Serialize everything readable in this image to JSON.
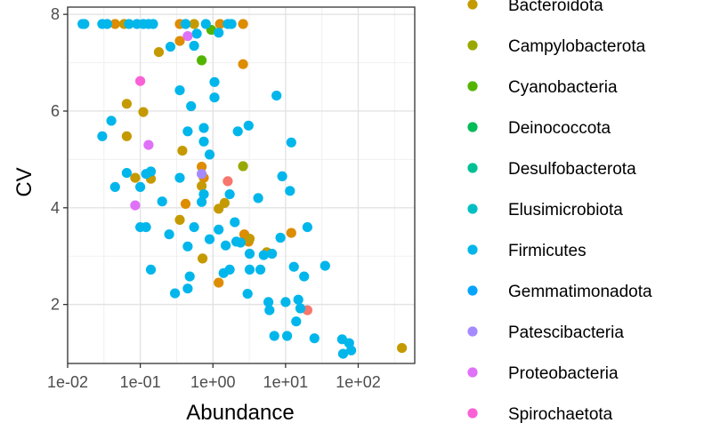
{
  "chart_data": {
    "type": "scatter",
    "xlabel": "Abundance",
    "ylabel": "CV",
    "x_scale": "log10",
    "xlim": [
      0.01,
      600
    ],
    "ylim": [
      0.78,
      8.15
    ],
    "x_ticks": [
      {
        "value": 0.01,
        "label": "1e-02"
      },
      {
        "value": 0.1,
        "label": "1e-01"
      },
      {
        "value": 1,
        "label": "1e+00"
      },
      {
        "value": 10,
        "label": "1e+01"
      },
      {
        "value": 100,
        "label": "1e+02"
      }
    ],
    "y_ticks": [
      {
        "value": 2,
        "label": "2"
      },
      {
        "value": 4,
        "label": "4"
      },
      {
        "value": 6,
        "label": "6"
      },
      {
        "value": 8,
        "label": "8"
      }
    ],
    "grid": true,
    "legend_position": "right",
    "legend": [
      {
        "name": "Bacteroidota",
        "color": "#C49A00"
      },
      {
        "name": "Campylobacterota",
        "color": "#99A800"
      },
      {
        "name": "Cyanobacteria",
        "color": "#53B400"
      },
      {
        "name": "Deinococcota",
        "color": "#00BC56"
      },
      {
        "name": "Desulfobacterota",
        "color": "#00C094"
      },
      {
        "name": "Elusimicrobiota",
        "color": "#00BFC4"
      },
      {
        "name": "Firmicutes",
        "color": "#00B6EB"
      },
      {
        "name": "Gemmatimonadota",
        "color": "#06A4FF"
      },
      {
        "name": "Patescibacteria",
        "color": "#A58AFF"
      },
      {
        "name": "Proteobacteria",
        "color": "#DF70F8"
      },
      {
        "name": "Spirochaetota",
        "color": "#FB61D7"
      }
    ],
    "series": [
      {
        "color": "#F8766D",
        "points": [
          [
            1.6,
            4.55
          ],
          [
            20,
            1.88
          ]
        ]
      },
      {
        "color": "#DE8C00",
        "points": [
          [
            0.045,
            7.8
          ],
          [
            0.35,
            7.8
          ],
          [
            0.42,
            7.8
          ],
          [
            1.25,
            7.8
          ],
          [
            2.6,
            7.8
          ],
          [
            0.35,
            7.45
          ],
          [
            2.6,
            6.97
          ],
          [
            0.42,
            4.08
          ],
          [
            0.7,
            4.85
          ],
          [
            0.75,
            4.62
          ],
          [
            2.7,
            3.45
          ],
          [
            3.1,
            3.3
          ],
          [
            12,
            3.48
          ],
          [
            1.2,
            2.45
          ]
        ]
      },
      {
        "color": "#C49A00",
        "points": [
          [
            0.06,
            7.8
          ],
          [
            0.55,
            7.8
          ],
          [
            0.18,
            7.22
          ],
          [
            0.065,
            6.15
          ],
          [
            0.11,
            5.98
          ],
          [
            0.065,
            5.48
          ],
          [
            0.085,
            4.62
          ],
          [
            0.14,
            4.6
          ],
          [
            0.38,
            5.18
          ],
          [
            0.7,
            4.45
          ],
          [
            0.35,
            3.75
          ],
          [
            1.2,
            3.98
          ],
          [
            1.45,
            4.1
          ],
          [
            3.2,
            3.36
          ],
          [
            5.5,
            3.08
          ],
          [
            0.72,
            2.95
          ],
          [
            400,
            1.1
          ]
        ]
      },
      {
        "color": "#99A800",
        "points": [
          [
            2.6,
            4.86
          ]
        ]
      },
      {
        "color": "#53B400",
        "points": [
          [
            0.7,
            7.05
          ],
          [
            0.95,
            7.68
          ]
        ]
      },
      {
        "color": "#00B6EB",
        "points": [
          [
            0.016,
            7.8
          ],
          [
            0.017,
            7.8
          ],
          [
            0.03,
            7.8
          ],
          [
            0.035,
            7.8
          ],
          [
            0.07,
            7.8
          ],
          [
            0.09,
            7.8
          ],
          [
            0.11,
            7.8
          ],
          [
            0.13,
            7.8
          ],
          [
            0.15,
            7.8
          ],
          [
            0.42,
            7.8
          ],
          [
            0.8,
            7.8
          ],
          [
            1.6,
            7.8
          ],
          [
            1.8,
            7.8
          ],
          [
            1.2,
            7.62
          ],
          [
            0.26,
            7.33
          ],
          [
            0.55,
            7.35
          ],
          [
            0.6,
            7.6
          ],
          [
            1.05,
            6.6
          ],
          [
            1.05,
            6.28
          ],
          [
            7.5,
            6.32
          ],
          [
            0.35,
            6.43
          ],
          [
            0.5,
            6.1
          ],
          [
            0.75,
            5.65
          ],
          [
            0.45,
            5.58
          ],
          [
            0.75,
            5.37
          ],
          [
            0.9,
            5.1
          ],
          [
            2.2,
            5.58
          ],
          [
            3.1,
            5.7
          ],
          [
            12,
            5.35
          ],
          [
            0.03,
            5.48
          ],
          [
            0.04,
            5.8
          ],
          [
            0.065,
            4.72
          ],
          [
            0.12,
            4.7
          ],
          [
            0.14,
            4.75
          ],
          [
            0.35,
            4.62
          ],
          [
            0.045,
            4.43
          ],
          [
            0.1,
            4.43
          ],
          [
            0.75,
            4.28
          ],
          [
            1.7,
            4.28
          ],
          [
            0.7,
            4.12
          ],
          [
            4.2,
            4.2
          ],
          [
            0.2,
            4.13
          ],
          [
            9,
            4.65
          ],
          [
            11.5,
            4.35
          ],
          [
            0.1,
            3.6
          ],
          [
            0.12,
            3.6
          ],
          [
            0.25,
            3.45
          ],
          [
            0.55,
            3.6
          ],
          [
            0.9,
            3.35
          ],
          [
            1.2,
            3.55
          ],
          [
            2,
            3.7
          ],
          [
            2.1,
            3.3
          ],
          [
            3.2,
            3.05
          ],
          [
            5,
            3.02
          ],
          [
            6.5,
            3.05
          ],
          [
            8.5,
            3.38
          ],
          [
            0.45,
            3.2
          ],
          [
            1.5,
            3.22
          ],
          [
            2.4,
            3.28
          ],
          [
            20,
            3.6
          ],
          [
            0.14,
            2.72
          ],
          [
            0.48,
            2.58
          ],
          [
            1.4,
            2.65
          ],
          [
            1.7,
            2.72
          ],
          [
            3.2,
            2.72
          ],
          [
            4.5,
            2.72
          ],
          [
            13,
            2.78
          ],
          [
            18,
            2.58
          ],
          [
            35,
            2.8
          ],
          [
            0.3,
            2.23
          ],
          [
            0.45,
            2.33
          ],
          [
            3,
            2.22
          ],
          [
            5.8,
            2.05
          ],
          [
            10,
            2.05
          ],
          [
            15,
            2.1
          ],
          [
            6,
            1.88
          ],
          [
            16,
            1.92
          ],
          [
            14,
            1.65
          ],
          [
            7,
            1.35
          ],
          [
            10.5,
            1.35
          ],
          [
            25,
            1.3
          ],
          [
            60,
            1.28
          ],
          [
            75,
            1.2
          ],
          [
            80,
            1.05
          ],
          [
            62,
            0.98
          ]
        ]
      },
      {
        "color": "#A58AFF",
        "points": [
          [
            0.7,
            4.7
          ]
        ]
      },
      {
        "color": "#DF70F8",
        "points": [
          [
            0.45,
            7.55
          ],
          [
            0.13,
            5.3
          ],
          [
            0.085,
            4.05
          ]
        ]
      },
      {
        "color": "#FB61D7",
        "points": [
          [
            0.1,
            6.62
          ]
        ]
      }
    ]
  }
}
